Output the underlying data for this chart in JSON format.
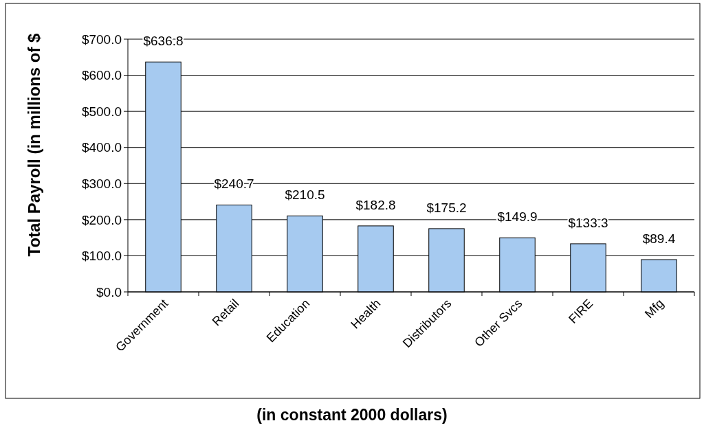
{
  "chart_data": {
    "type": "bar",
    "ylabel": "Total Payroll (in millions of $",
    "categories": [
      "Government",
      "Retail",
      "Education",
      "Health",
      "Distributors",
      "Other Svcs",
      "FIRE",
      "Mfg"
    ],
    "values": [
      636.8,
      240.7,
      210.5,
      182.8,
      175.2,
      149.9,
      133.3,
      89.4
    ],
    "value_labels": [
      "$636.8",
      "$240.7",
      "$210.5",
      "$182.8",
      "$175.2",
      "$149.9",
      "$133.3",
      "$89.4"
    ],
    "color": "#a6caf0",
    "ylim": [
      0,
      700
    ],
    "yticks": [
      {
        "value": 0,
        "label": "$0.0"
      },
      {
        "value": 100,
        "label": "$100.0"
      },
      {
        "value": 200,
        "label": "$200.0"
      },
      {
        "value": 300,
        "label": "$300.0"
      },
      {
        "value": 400,
        "label": "$400.0"
      },
      {
        "value": 500,
        "label": "$500.0"
      },
      {
        "value": 600,
        "label": "$600.0"
      },
      {
        "value": 700,
        "label": "$700.0"
      }
    ],
    "grid": "y",
    "annotations": [
      "(in constant 2000 dollars)"
    ]
  }
}
